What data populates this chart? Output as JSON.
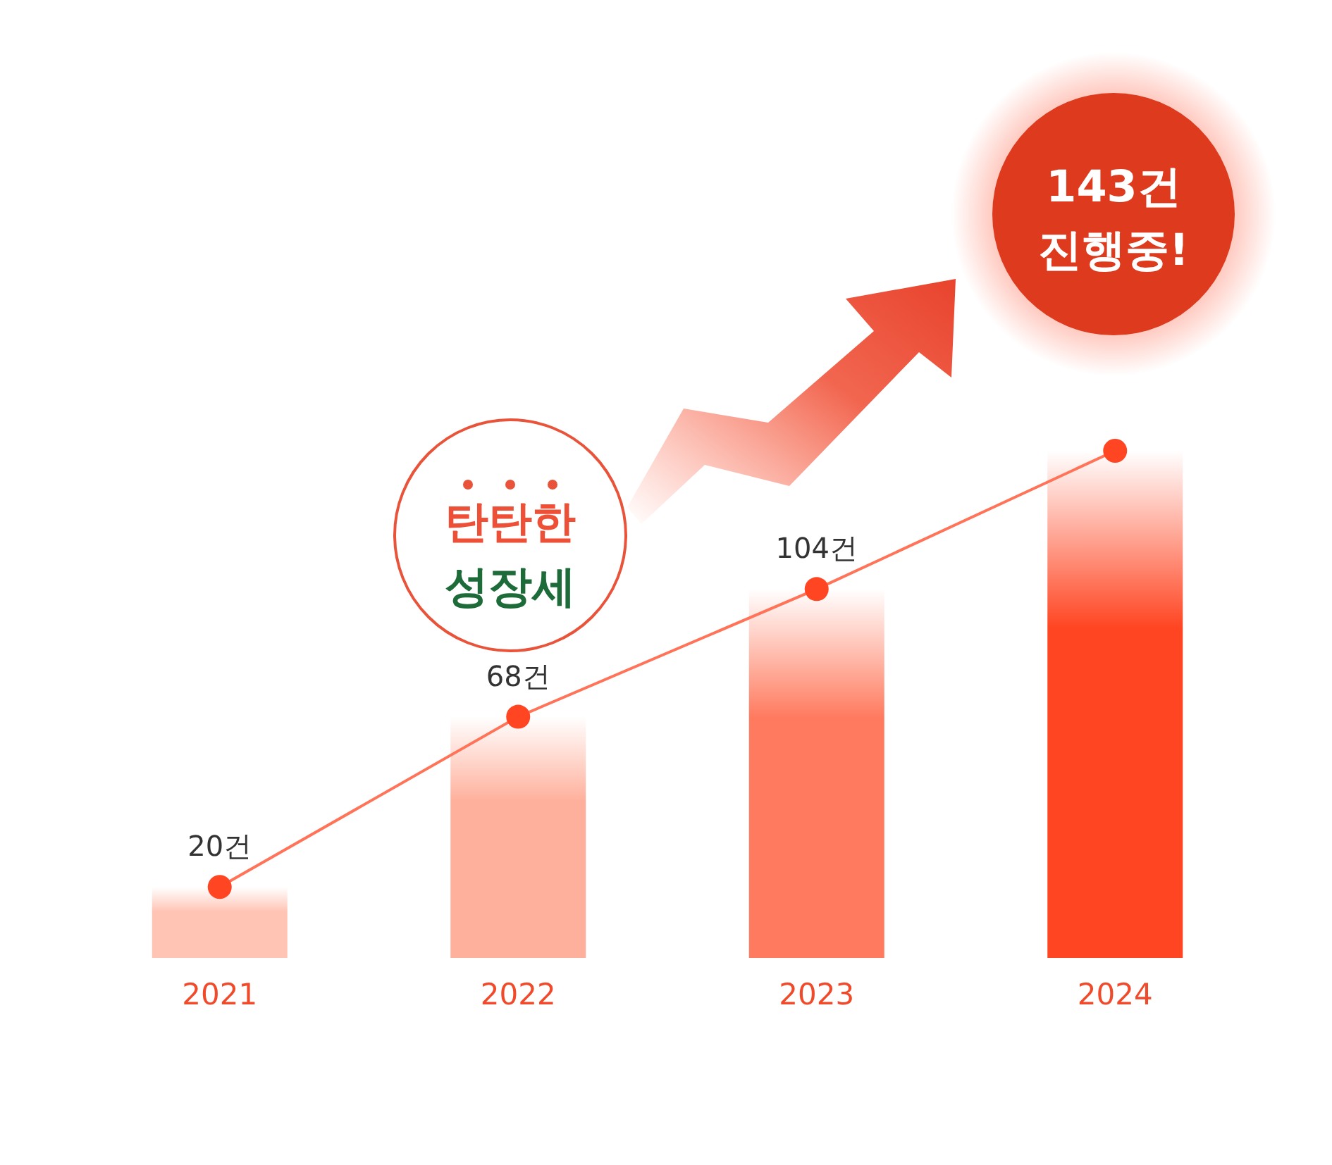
{
  "chart_data": {
    "type": "bar",
    "categories": [
      "2021",
      "2022",
      "2023",
      "2024"
    ],
    "series": [
      {
        "colors": [
          "#ffc4b4",
          "#ffb09c",
          "#ff7a5e",
          "#ff4522"
        ],
        "values": [
          20,
          68,
          104,
          143
        ]
      },
      {
        "type": "line",
        "color": "#ff7358",
        "marker": "circle",
        "values": [
          20,
          68,
          104,
          143
        ],
        "value_labels": [
          "20건",
          "68건",
          "104건",
          null
        ]
      }
    ],
    "annotations": [
      "143건 진행중!",
      "탄탄한 성장세"
    ]
  }
}
